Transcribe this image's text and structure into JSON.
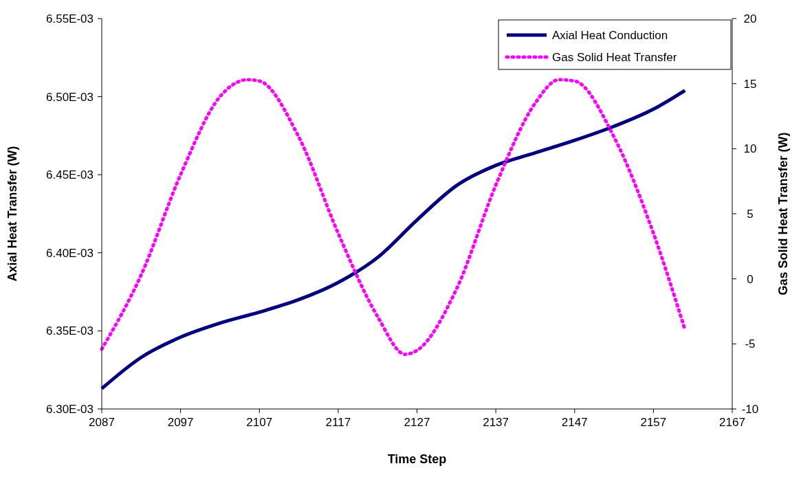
{
  "chart_data": {
    "type": "line",
    "xlabel": "Time Step",
    "ylabel": "Axial Heat Transfer (W)",
    "y2label": "Gas Solid Heat Transfer (W)",
    "xlim": [
      2087,
      2167
    ],
    "xticks": [
      2087,
      2097,
      2107,
      2117,
      2127,
      2137,
      2147,
      2157,
      2167
    ],
    "ylim": [
      0.0063,
      0.00655
    ],
    "yticks": [
      {
        "value": 0.0063,
        "label": "6.30E-03"
      },
      {
        "value": 0.00635,
        "label": "6.35E-03"
      },
      {
        "value": 0.0064,
        "label": "6.40E-03"
      },
      {
        "value": 0.00645,
        "label": "6.45E-03"
      },
      {
        "value": 0.0065,
        "label": "6.50E-03"
      },
      {
        "value": 0.00655,
        "label": "6.55E-03"
      }
    ],
    "y2lim": [
      -10,
      20
    ],
    "y2ticks": [
      -10,
      -5,
      0,
      5,
      10,
      15,
      20
    ],
    "legend": "top right",
    "grid": false,
    "series": [
      {
        "name": "Axial Heat Conduction",
        "color": "#000080",
        "line_style": "solid",
        "x": [
          2087,
          2092,
          2097,
          2102,
          2107,
          2112,
          2117,
          2122,
          2127,
          2132,
          2137,
          2142,
          2147,
          2152,
          2157,
          2161
        ],
        "values": [
          0.006313,
          0.006333,
          0.006346,
          0.006355,
          0.006362,
          0.00637,
          0.006381,
          0.006397,
          0.006421,
          0.006443,
          0.006456,
          0.006464,
          0.006472,
          0.006481,
          0.006492,
          0.006504
        ]
      },
      {
        "name": "Gas Solid Heat Transfer",
        "color": "#ff00ff",
        "line_style": "dotted",
        "axis": "y2",
        "x": [
          2087,
          2092,
          2097,
          2102,
          2105.5,
          2107,
          2112,
          2117,
          2122,
          2125.5,
          2127,
          2132,
          2137,
          2142,
          2145,
          2147,
          2152,
          2157,
          2161
        ],
        "values": [
          -5.4,
          0.3,
          8.0,
          14.0,
          15.3,
          15.2,
          10.9,
          3.5,
          -2.9,
          -5.8,
          -5.5,
          -0.8,
          7.2,
          13.5,
          15.3,
          15.2,
          10.9,
          3.5,
          -3.9
        ]
      }
    ]
  }
}
